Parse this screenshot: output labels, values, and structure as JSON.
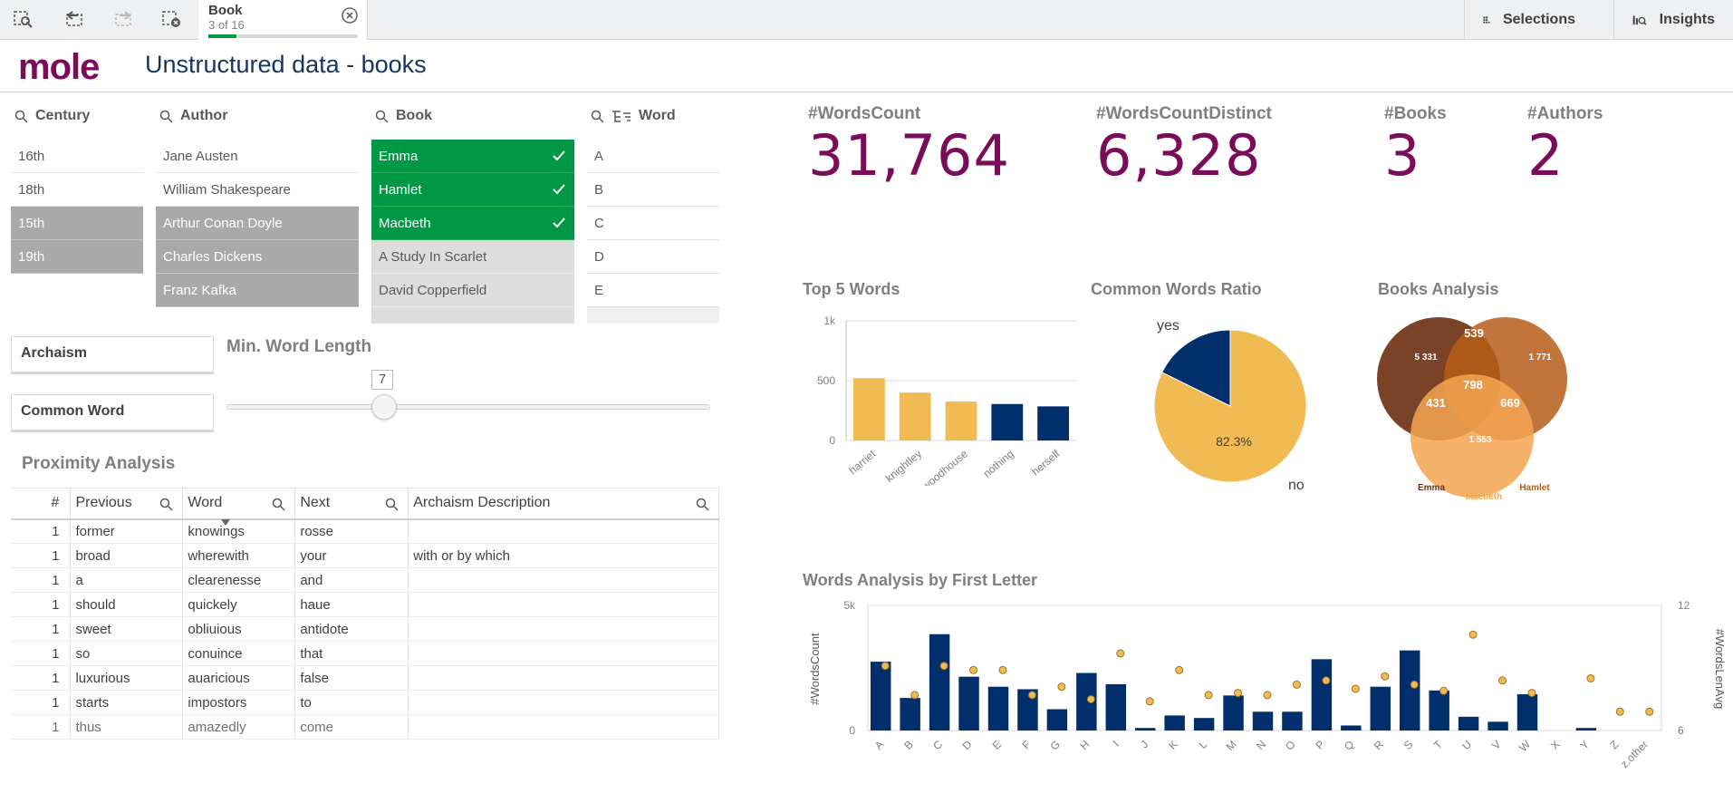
{
  "toolbar": {
    "chip": {
      "title": "Book",
      "subtitle": "3 of 16",
      "progress": 0.1875
    },
    "selections_label": "Selections",
    "insights_label": "Insights"
  },
  "header": {
    "logo_text": "mole",
    "title": "Unstructured data - books"
  },
  "filters": {
    "century": {
      "title": "Century",
      "items": [
        {
          "label": "16th",
          "state": "possible"
        },
        {
          "label": "18th",
          "state": "possible"
        },
        {
          "label": "15th",
          "state": "alternative"
        },
        {
          "label": "19th",
          "state": "alternative"
        }
      ]
    },
    "author": {
      "title": "Author",
      "items": [
        {
          "label": "Jane Austen",
          "state": "possible"
        },
        {
          "label": "William Shakespeare",
          "state": "possible"
        },
        {
          "label": "Arthur Conan Doyle",
          "state": "alternative"
        },
        {
          "label": "Charles Dickens",
          "state": "alternative"
        },
        {
          "label": "Franz Kafka",
          "state": "alternative"
        }
      ]
    },
    "book": {
      "title": "Book",
      "items": [
        {
          "label": "Emma",
          "state": "selected"
        },
        {
          "label": "Hamlet",
          "state": "selected"
        },
        {
          "label": "Macbeth",
          "state": "selected"
        },
        {
          "label": "A Study In Scarlet",
          "state": "excluded"
        },
        {
          "label": "David Copperfield",
          "state": "excluded"
        }
      ]
    },
    "word": {
      "title": "Word",
      "items": [
        {
          "label": "A",
          "state": "possible"
        },
        {
          "label": "B",
          "state": "possible"
        },
        {
          "label": "C",
          "state": "possible"
        },
        {
          "label": "D",
          "state": "possible"
        },
        {
          "label": "E",
          "state": "possible"
        }
      ]
    }
  },
  "boxes": {
    "archaism": "Archaism",
    "common_word": "Common Word"
  },
  "slider": {
    "title": "Min. Word Length",
    "value": "7",
    "fraction": 0.33
  },
  "proximity": {
    "title": "Proximity Analysis",
    "columns": [
      "#",
      "Previous",
      "Word",
      "Next",
      "Archaism Description"
    ],
    "rows": [
      [
        "1",
        "former",
        "knowings",
        "rosse",
        ""
      ],
      [
        "1",
        "broad",
        "wherewith",
        "your",
        "with or by which"
      ],
      [
        "1",
        "a",
        "clearenesse",
        "and",
        ""
      ],
      [
        "1",
        "should",
        "quickely",
        "haue",
        ""
      ],
      [
        "1",
        "sweet",
        "obliuious",
        "antidote",
        ""
      ],
      [
        "1",
        "so",
        "conuince",
        "that",
        ""
      ],
      [
        "1",
        "luxurious",
        "auaricious",
        "false",
        ""
      ],
      [
        "1",
        "starts",
        "impostors",
        "to",
        ""
      ],
      [
        "1",
        "thus",
        "amazedly",
        "come",
        ""
      ]
    ]
  },
  "kpis": [
    {
      "label": "#WordsCount",
      "value": "31,764"
    },
    {
      "label": "#WordsCountDistinct",
      "value": "6,328"
    },
    {
      "label": "#Books",
      "value": "3"
    },
    {
      "label": "#Authors",
      "value": "2"
    }
  ],
  "colors": {
    "primary": "#f0bb53",
    "secondary": "#002f6c",
    "kpi": "#7a0c5a",
    "selected": "#009845"
  },
  "chart_data": [
    {
      "type": "bar",
      "title": "Top 5 Words",
      "categories": [
        "harriet",
        "knightley",
        "woodhouse",
        "nothing",
        "herself"
      ],
      "values": [
        520,
        400,
        325,
        305,
        285
      ],
      "highlight": [
        true,
        true,
        true,
        false,
        false
      ],
      "yticks": [
        "0",
        "500",
        "1k"
      ],
      "ylim": [
        0,
        1000
      ]
    },
    {
      "type": "pie",
      "title": "Common Words Ratio",
      "slices": [
        {
          "label": "no",
          "value": 82.3,
          "value_label": "82.3%"
        },
        {
          "label": "yes",
          "value": 17.7
        }
      ]
    },
    {
      "type": "venn",
      "title": "Books Analysis",
      "sets": [
        "Emma",
        "Hamlet",
        "Macbeth"
      ],
      "regions": [
        {
          "label": "5 331"
        },
        {
          "label": "1 771"
        },
        {
          "label": "1 553"
        },
        {
          "label": "539"
        },
        {
          "label": "431"
        },
        {
          "label": "669"
        },
        {
          "label": "798"
        }
      ]
    },
    {
      "type": "bar",
      "title": "Words Analysis by First Letter",
      "categories": [
        "A",
        "B",
        "C",
        "D",
        "E",
        "F",
        "G",
        "H",
        "I",
        "J",
        "K",
        "L",
        "M",
        "N",
        "O",
        "P",
        "Q",
        "R",
        "S",
        "T",
        "U",
        "V",
        "W",
        "X",
        "Y",
        "Z",
        "z.other"
      ],
      "series": [
        {
          "name": "#WordsCount",
          "axis": "left",
          "values": [
            2750,
            1300,
            3850,
            2150,
            1750,
            1650,
            850,
            2300,
            1850,
            100,
            600,
            500,
            1400,
            750,
            750,
            2850,
            200,
            1750,
            3200,
            1600,
            550,
            350,
            1450,
            0,
            100,
            0,
            0
          ]
        },
        {
          "name": "#WordsLenAvg",
          "axis": "right",
          "values": [
            9.1,
            7.7,
            9.1,
            8.9,
            8.9,
            7.7,
            8.1,
            7.5,
            9.7,
            7.4,
            8.9,
            7.7,
            7.8,
            7.7,
            8.2,
            8.4,
            8.0,
            8.6,
            8.2,
            7.9,
            10.6,
            8.4,
            7.8,
            null,
            8.5,
            6.9,
            6.9
          ]
        }
      ],
      "ylabel": "#WordsCount",
      "y2label": "#WordsLenAvg",
      "ylim": [
        0,
        5000
      ],
      "y2lim": [
        6,
        12
      ],
      "yticks": [
        "0",
        "5k"
      ],
      "y2ticks": [
        "6",
        "12"
      ]
    }
  ]
}
